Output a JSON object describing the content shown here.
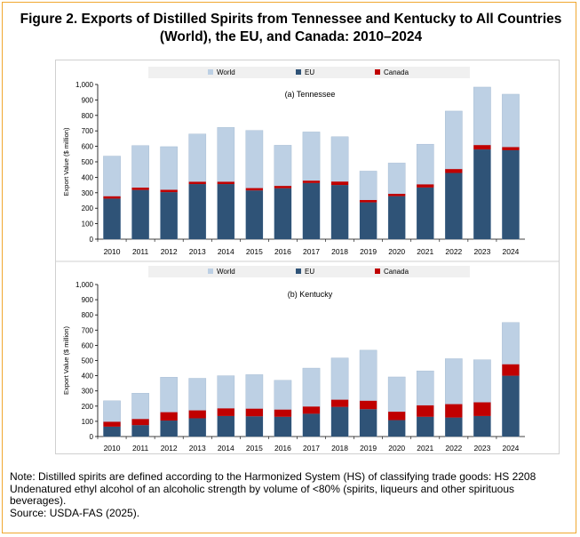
{
  "title": "Figure 2. Exports of Distilled Spirits from Tennessee and Kentucky to All Countries (World), the EU, and Canada: 2010–2024",
  "note_lines": [
    "Note: Distilled spirits are defined according to the Harmonized System (HS) of classifying trade goods: HS 2208",
    "Undenatured ethyl alcohol of an alcoholic strength by volume of <80% (spirits, liqueurs and other spirituous",
    "beverages).",
    "Source: USDA-FAS (2025)."
  ],
  "colors": {
    "world": "#bdd0e4",
    "eu": "#2f5377",
    "canada": "#c00000",
    "border": "#f0a830"
  },
  "chart_data": [
    {
      "type": "bar",
      "subtitle": "(a) Tennessee",
      "ylabel": "Export Value ($ million)",
      "ylim": [
        0,
        1000
      ],
      "yticks": [
        "0",
        "100",
        "200",
        "300",
        "400",
        "500",
        "600",
        "700",
        "800",
        "900",
        "1,000"
      ],
      "categories": [
        "2010",
        "2011",
        "2012",
        "2013",
        "2014",
        "2015",
        "2016",
        "2017",
        "2018",
        "2019",
        "2020",
        "2021",
        "2022",
        "2023",
        "2024"
      ],
      "legend_position": "top",
      "series": [
        {
          "name": "World",
          "values": [
            537,
            605,
            598,
            680,
            722,
            703,
            607,
            693,
            662,
            440,
            492,
            614,
            828,
            983,
            937
          ]
        },
        {
          "name": "EU",
          "values": [
            262,
            318,
            304,
            356,
            356,
            315,
            329,
            363,
            350,
            238,
            278,
            334,
            428,
            580,
            575
          ]
        },
        {
          "name": "Canada",
          "values": [
            15,
            15,
            15,
            15,
            15,
            15,
            15,
            15,
            22,
            15,
            15,
            20,
            25,
            28,
            20
          ]
        }
      ]
    },
    {
      "type": "bar",
      "subtitle": "(b) Kentucky",
      "ylabel": "Export Value ($ million)",
      "ylim": [
        0,
        1000
      ],
      "yticks": [
        "0",
        "100",
        "200",
        "300",
        "400",
        "500",
        "600",
        "700",
        "800",
        "900",
        "1,000"
      ],
      "categories": [
        "2010",
        "2011",
        "2012",
        "2013",
        "2014",
        "2015",
        "2016",
        "2017",
        "2018",
        "2019",
        "2020",
        "2021",
        "2022",
        "2023",
        "2024"
      ],
      "legend_position": "top",
      "series": [
        {
          "name": "World",
          "values": [
            235,
            285,
            390,
            383,
            400,
            407,
            370,
            450,
            517,
            568,
            392,
            432,
            512,
            505,
            750
          ]
        },
        {
          "name": "EU",
          "values": [
            65,
            75,
            105,
            120,
            135,
            133,
            130,
            150,
            195,
            180,
            108,
            130,
            125,
            135,
            400
          ]
        },
        {
          "name": "Canada",
          "values": [
            32,
            40,
            55,
            52,
            50,
            50,
            47,
            47,
            47,
            55,
            55,
            75,
            88,
            90,
            75
          ]
        }
      ]
    }
  ]
}
